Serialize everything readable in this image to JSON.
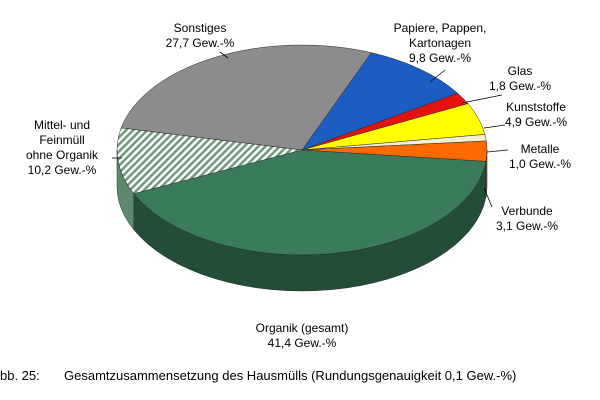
{
  "chart_data": {
    "type": "pie",
    "style": "3d",
    "categories": [
      "Papiere, Pappen,\nKartonagen",
      "Glas",
      "Kunststoffe",
      "Metalle",
      "Verbunde",
      "Organik (gesamt)",
      "Mittel- und\nFeinmüll\nohne Organik",
      "Sonstiges"
    ],
    "values": [
      9.8,
      1.8,
      4.9,
      1.0,
      3.1,
      41.4,
      10.2,
      27.7
    ],
    "value_labels": [
      "9,8 Gew.-%",
      "1,8 Gew.-%",
      "4,9 Gew.-%",
      "1,0 Gew.-%",
      "3,1 Gew.-%",
      "41,4 Gew.-%",
      "10,2 Gew.-%",
      "27,7 Gew.-%"
    ],
    "colors": [
      "#1d5cc0",
      "#e3140f",
      "#ffff00",
      "#f3efd2",
      "#ff6a00",
      "#3a7c5a",
      "#c7dacb",
      "#8c8c8c"
    ],
    "hatched": [
      false,
      false,
      false,
      false,
      false,
      false,
      true,
      false
    ],
    "caption_number": "bb. 25:",
    "caption": "Gesamtzusammensetzung des Hausmülls (Rundungsgenauigkeit 0,1 Gew.-%)"
  }
}
